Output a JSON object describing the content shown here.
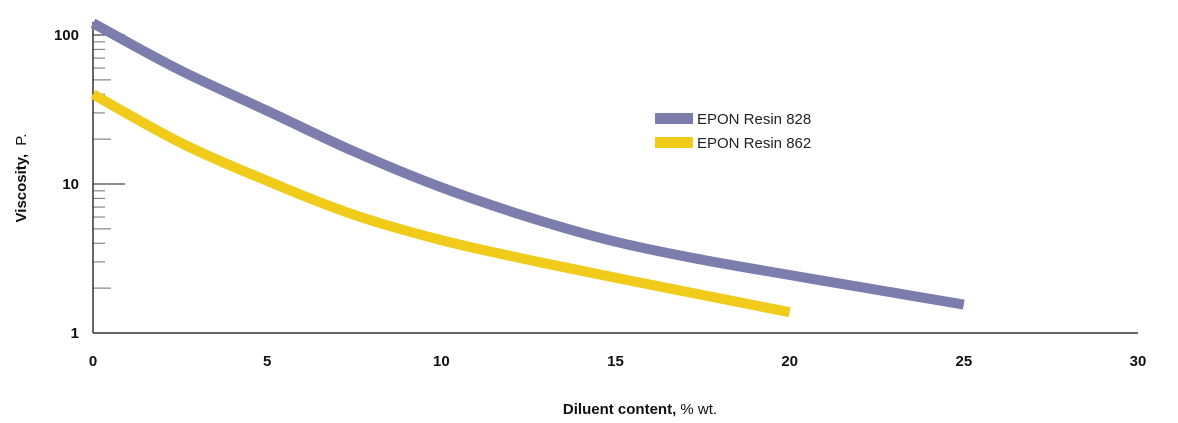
{
  "chart_data": {
    "type": "line",
    "title": "",
    "xlabel_bold": "Diluent content,",
    "xlabel_unit": " % wt.",
    "ylabel_bold": "Viscosity,",
    "ylabel_unit": "P.",
    "xlim": [
      0,
      30
    ],
    "ylim": [
      1,
      100
    ],
    "yscale": "log",
    "grid": false,
    "legend_position": "right-center",
    "x_ticks": [
      "0",
      "5",
      "10",
      "15",
      "20",
      "25",
      "30"
    ],
    "y_ticks": [
      "1",
      "10",
      "100"
    ],
    "series": [
      {
        "name": "EPON Resin 828",
        "color": "#7b7ead",
        "x": [
          0,
          2.5,
          5,
          7.5,
          10,
          12.5,
          15,
          17.5,
          20,
          22.5,
          25
        ],
        "y": [
          120,
          58,
          31,
          16.5,
          9.5,
          6.0,
          4.1,
          3.1,
          2.45,
          1.95,
          1.55
        ]
      },
      {
        "name": "EPON Resin 862",
        "color": "#f1cb1a",
        "x": [
          0,
          2.5,
          5,
          7.5,
          10,
          12.5,
          15,
          17.5,
          20
        ],
        "y": [
          40,
          19,
          10.5,
          6.2,
          4.2,
          3.1,
          2.35,
          1.8,
          1.38
        ]
      }
    ]
  }
}
